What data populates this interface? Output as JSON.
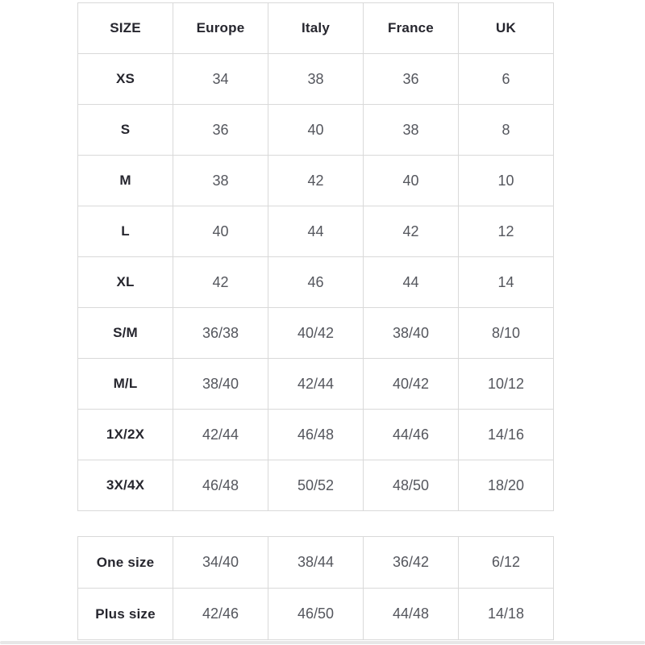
{
  "colors": {
    "background": "#ffffff",
    "border": "#d9d9d9",
    "header_text": "#26262e",
    "data_text": "#54565d",
    "scrollbar_track": "#e7e7e7"
  },
  "main_table": {
    "headers": [
      "SIZE",
      "Europe",
      "Italy",
      "France",
      "UK"
    ],
    "rows": [
      {
        "size": "XS",
        "values": [
          "34",
          "38",
          "36",
          "6"
        ]
      },
      {
        "size": "S",
        "values": [
          "36",
          "40",
          "38",
          "8"
        ]
      },
      {
        "size": "M",
        "values": [
          "38",
          "42",
          "40",
          "10"
        ]
      },
      {
        "size": "L",
        "values": [
          "40",
          "44",
          "42",
          "12"
        ]
      },
      {
        "size": "XL",
        "values": [
          "42",
          "46",
          "44",
          "14"
        ]
      },
      {
        "size": "S/M",
        "values": [
          "36/38",
          "40/42",
          "38/40",
          "8/10"
        ]
      },
      {
        "size": "M/L",
        "values": [
          "38/40",
          "42/44",
          "40/42",
          "10/12"
        ]
      },
      {
        "size": "1X/2X",
        "values": [
          "42/44",
          "46/48",
          "44/46",
          "14/16"
        ]
      },
      {
        "size": "3X/4X",
        "values": [
          "46/48",
          "50/52",
          "48/50",
          "18/20"
        ]
      }
    ]
  },
  "extra_table": {
    "rows": [
      {
        "size": "One size",
        "values": [
          "34/40",
          "38/44",
          "36/42",
          "6/12"
        ]
      },
      {
        "size": "Plus size",
        "values": [
          "42/46",
          "46/50",
          "44/48",
          "14/18"
        ]
      }
    ]
  }
}
